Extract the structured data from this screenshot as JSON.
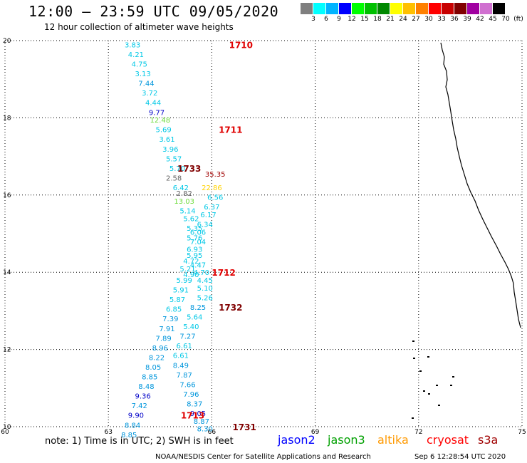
{
  "header": {
    "title": "12:00 – 23:59 UTC 09/05/2020",
    "subtitle": "12 hour collection of altimeter wave heights"
  },
  "legend": {
    "unit": "(ft)",
    "bins": [
      {
        "label": "3",
        "color": "#7f7f7f"
      },
      {
        "label": "6",
        "color": "#00ffff"
      },
      {
        "label": "9",
        "color": "#00b4ff"
      },
      {
        "label": "12",
        "color": "#0000ff"
      },
      {
        "label": "15",
        "color": "#00ff00"
      },
      {
        "label": "18",
        "color": "#00c000"
      },
      {
        "label": "21",
        "color": "#008800"
      },
      {
        "label": "24",
        "color": "#ffff00"
      },
      {
        "label": "27",
        "color": "#ffc000"
      },
      {
        "label": "30",
        "color": "#ff8000"
      },
      {
        "label": "33",
        "color": "#ff0000"
      },
      {
        "label": "36",
        "color": "#c80000"
      },
      {
        "label": "39",
        "color": "#800000"
      },
      {
        "label": "42",
        "color": "#a000a0"
      },
      {
        "label": "45",
        "color": "#d070d0"
      },
      {
        "label": "70",
        "color": "#000000"
      }
    ]
  },
  "chart_data": {
    "type": "scatter",
    "xlim": [
      60,
      75
    ],
    "ylim": [
      10,
      20
    ],
    "x_ticks": [
      "60",
      "63",
      "66",
      "69",
      "72",
      "75"
    ],
    "y_ticks": [
      "10",
      "12",
      "14",
      "16",
      "18",
      "20"
    ],
    "grid": true,
    "track_labels": [
      {
        "text": "1710",
        "x": 66.5,
        "y": 19.9,
        "color": "#e00000"
      },
      {
        "text": "1711",
        "x": 66.2,
        "y": 17.7,
        "color": "#e00000"
      },
      {
        "text": "1733",
        "x": 65.0,
        "y": 16.7,
        "color": "#800000"
      },
      {
        "text": "1712",
        "x": 66.0,
        "y": 14.0,
        "color": "#e00000"
      },
      {
        "text": "1732",
        "x": 66.2,
        "y": 13.1,
        "color": "#800000"
      },
      {
        "text": "1713",
        "x": 65.1,
        "y": 10.3,
        "color": "#e00000"
      },
      {
        "text": "1731",
        "x": 66.6,
        "y": 10.0,
        "color": "#800000"
      }
    ],
    "wave_heights": [
      {
        "text": "3.83",
        "x": 63.7,
        "y": 19.9,
        "color": "#00c8e6"
      },
      {
        "text": "4.21",
        "x": 63.8,
        "y": 19.65,
        "color": "#00c8e6"
      },
      {
        "text": "4.75",
        "x": 63.9,
        "y": 19.4,
        "color": "#00c8e6"
      },
      {
        "text": "3.13",
        "x": 64.0,
        "y": 19.15,
        "color": "#00c8e6"
      },
      {
        "text": "7.44",
        "x": 64.1,
        "y": 18.9,
        "color": "#0096dc"
      },
      {
        "text": "3.72",
        "x": 64.2,
        "y": 18.65,
        "color": "#00c8e6"
      },
      {
        "text": "4.44",
        "x": 64.3,
        "y": 18.4,
        "color": "#00c8e6"
      },
      {
        "text": "9.77",
        "x": 64.4,
        "y": 18.15,
        "color": "#0000c8"
      },
      {
        "text": "12.48",
        "x": 64.5,
        "y": 17.95,
        "color": "#6edc3c"
      },
      {
        "text": "5.69",
        "x": 64.6,
        "y": 17.7,
        "color": "#00c8e6"
      },
      {
        "text": "3.61",
        "x": 64.7,
        "y": 17.45,
        "color": "#00c8e6"
      },
      {
        "text": "3.96",
        "x": 64.8,
        "y": 17.2,
        "color": "#00c8e6"
      },
      {
        "text": "5.57",
        "x": 64.9,
        "y": 16.95,
        "color": "#00c8e6"
      },
      {
        "text": "5.70",
        "x": 65.0,
        "y": 16.7,
        "color": "#00c8e6"
      },
      {
        "text": "2.58",
        "x": 64.9,
        "y": 16.45,
        "color": "#646464"
      },
      {
        "text": "35.35",
        "x": 66.1,
        "y": 16.55,
        "color": "#a00000"
      },
      {
        "text": "6.42",
        "x": 65.1,
        "y": 16.2,
        "color": "#00c8e6"
      },
      {
        "text": "2.82",
        "x": 65.2,
        "y": 16.05,
        "color": "#646464"
      },
      {
        "text": "22.86",
        "x": 66.0,
        "y": 16.2,
        "color": "#ffd200"
      },
      {
        "text": "13.03",
        "x": 65.2,
        "y": 15.85,
        "color": "#6edc3c"
      },
      {
        "text": "6.56",
        "x": 66.1,
        "y": 15.95,
        "color": "#00c8e6"
      },
      {
        "text": "5.14",
        "x": 65.3,
        "y": 15.6,
        "color": "#00c8e6"
      },
      {
        "text": "6.37",
        "x": 66.0,
        "y": 15.7,
        "color": "#00c8e6"
      },
      {
        "text": "5.62",
        "x": 65.4,
        "y": 15.4,
        "color": "#00c8e6"
      },
      {
        "text": "6.17",
        "x": 65.9,
        "y": 15.5,
        "color": "#00c8e6"
      },
      {
        "text": "5.35",
        "x": 65.5,
        "y": 15.15,
        "color": "#00c8e6"
      },
      {
        "text": "6.34",
        "x": 65.8,
        "y": 15.25,
        "color": "#00c8e6"
      },
      {
        "text": "5.76",
        "x": 65.5,
        "y": 14.9,
        "color": "#00c8e6"
      },
      {
        "text": "6.06",
        "x": 65.6,
        "y": 15.05,
        "color": "#00c8e6"
      },
      {
        "text": "7.04",
        "x": 65.6,
        "y": 14.8,
        "color": "#00c8e6"
      },
      {
        "text": "6.93",
        "x": 65.5,
        "y": 14.6,
        "color": "#00c8e6"
      },
      {
        "text": "5.95",
        "x": 65.5,
        "y": 14.45,
        "color": "#00c8e6"
      },
      {
        "text": "4.72",
        "x": 65.4,
        "y": 14.3,
        "color": "#00c8e6"
      },
      {
        "text": "4.47",
        "x": 65.6,
        "y": 14.2,
        "color": "#00c8e6"
      },
      {
        "text": "5.21",
        "x": 65.3,
        "y": 14.1,
        "color": "#00c8e6"
      },
      {
        "text": "4.90",
        "x": 65.4,
        "y": 13.95,
        "color": "#00c8e6"
      },
      {
        "text": "4.70",
        "x": 65.7,
        "y": 14.0,
        "color": "#00c8e6"
      },
      {
        "text": "5.99",
        "x": 65.2,
        "y": 13.8,
        "color": "#00c8e6"
      },
      {
        "text": "4.45",
        "x": 65.8,
        "y": 13.8,
        "color": "#00c8e6"
      },
      {
        "text": "5.91",
        "x": 65.1,
        "y": 13.55,
        "color": "#00c8e6"
      },
      {
        "text": "5.10",
        "x": 65.8,
        "y": 13.6,
        "color": "#00c8e6"
      },
      {
        "text": "5.87",
        "x": 65.0,
        "y": 13.3,
        "color": "#00c8e6"
      },
      {
        "text": "5.26",
        "x": 65.8,
        "y": 13.35,
        "color": "#00c8e6"
      },
      {
        "text": "6.85",
        "x": 64.9,
        "y": 13.05,
        "color": "#00c8e6"
      },
      {
        "text": "8.25",
        "x": 65.6,
        "y": 13.1,
        "color": "#0096dc"
      },
      {
        "text": "7.39",
        "x": 64.8,
        "y": 12.8,
        "color": "#0096dc"
      },
      {
        "text": "5.64",
        "x": 65.5,
        "y": 12.85,
        "color": "#00c8e6"
      },
      {
        "text": "7.91",
        "x": 64.7,
        "y": 12.55,
        "color": "#0096dc"
      },
      {
        "text": "5.40",
        "x": 65.4,
        "y": 12.6,
        "color": "#00c8e6"
      },
      {
        "text": "7.89",
        "x": 64.6,
        "y": 12.3,
        "color": "#0096dc"
      },
      {
        "text": "7.27",
        "x": 65.3,
        "y": 12.35,
        "color": "#0096dc"
      },
      {
        "text": "8.96",
        "x": 64.5,
        "y": 12.05,
        "color": "#0096dc"
      },
      {
        "text": "6.61",
        "x": 65.2,
        "y": 12.1,
        "color": "#00c8e6"
      },
      {
        "text": "8.22",
        "x": 64.4,
        "y": 11.8,
        "color": "#0096dc"
      },
      {
        "text": "6.61",
        "x": 65.1,
        "y": 11.85,
        "color": "#00c8e6"
      },
      {
        "text": "8.05",
        "x": 64.3,
        "y": 11.55,
        "color": "#0096dc"
      },
      {
        "text": "8.49",
        "x": 65.1,
        "y": 11.6,
        "color": "#0096dc"
      },
      {
        "text": "8.85",
        "x": 64.2,
        "y": 11.3,
        "color": "#0096dc"
      },
      {
        "text": "7.87",
        "x": 65.2,
        "y": 11.35,
        "color": "#0096dc"
      },
      {
        "text": "8.48",
        "x": 64.1,
        "y": 11.05,
        "color": "#0096dc"
      },
      {
        "text": "7.66",
        "x": 65.3,
        "y": 11.1,
        "color": "#0096dc"
      },
      {
        "text": "9.36",
        "x": 64.0,
        "y": 10.8,
        "color": "#0000c8"
      },
      {
        "text": "7.96",
        "x": 65.4,
        "y": 10.85,
        "color": "#0096dc"
      },
      {
        "text": "7.42",
        "x": 63.9,
        "y": 10.55,
        "color": "#0096dc"
      },
      {
        "text": "8.37",
        "x": 65.5,
        "y": 10.6,
        "color": "#0096dc"
      },
      {
        "text": "9.90",
        "x": 63.8,
        "y": 10.3,
        "color": "#0000c8"
      },
      {
        "text": "9.05",
        "x": 65.6,
        "y": 10.35,
        "color": "#0000c8"
      },
      {
        "text": "8.84",
        "x": 63.7,
        "y": 10.05,
        "color": "#0096dc"
      },
      {
        "text": "8.87",
        "x": 65.7,
        "y": 10.15,
        "color": "#0096dc"
      },
      {
        "text": "8.85",
        "x": 63.6,
        "y": 9.8,
        "color": "#0096dc"
      },
      {
        "text": "8.30",
        "x": 65.8,
        "y": 9.95,
        "color": "#0096dc"
      }
    ]
  },
  "note": "note:  1) Time is in UTC;  2) SWH is in feet",
  "satellites": [
    {
      "name": "jason2",
      "color": "#0000ff"
    },
    {
      "name": "jason3",
      "color": "#00a000"
    },
    {
      "name": "altika",
      "color": "#ff9900"
    },
    {
      "name": "cryosat",
      "color": "#ff0000"
    },
    {
      "name": "s3a",
      "color": "#a00000"
    }
  ],
  "footer": {
    "credit": "NOAA/NESDIS Center for Satellite Applications and Research",
    "timestamp": "Sep  6 12:28:54 UTC 2020"
  }
}
